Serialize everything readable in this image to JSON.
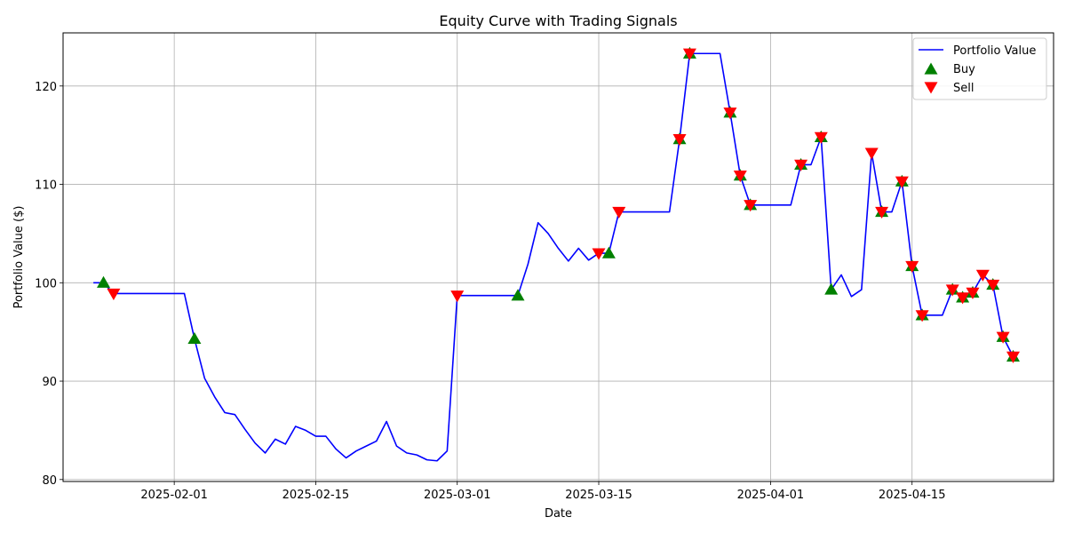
{
  "chart_data": {
    "type": "line",
    "title": "Equity Curve with Trading Signals",
    "xlabel": "Date",
    "ylabel": "Portfolio Value ($)",
    "xlim": [
      "2025-01-21",
      "2025-04-29"
    ],
    "ylim": [
      79.8,
      125.4
    ],
    "xticks": [
      "2025-02-01",
      "2025-02-15",
      "2025-03-01",
      "2025-03-15",
      "2025-04-01",
      "2025-04-15"
    ],
    "yticks": [
      80,
      90,
      100,
      110,
      120
    ],
    "grid": true,
    "legend": "top-right",
    "colors": {
      "line": "#0000ff",
      "buy": "#008000",
      "sell": "#ff0000"
    },
    "series": [
      {
        "name": "Portfolio Value",
        "kind": "line",
        "points": [
          [
            "2025-01-24",
            100.0
          ],
          [
            "2025-01-25",
            100.0
          ],
          [
            "2025-01-26",
            98.9
          ],
          [
            "2025-01-27",
            98.9
          ],
          [
            "2025-01-28",
            98.9
          ],
          [
            "2025-01-29",
            98.9
          ],
          [
            "2025-01-30",
            98.9
          ],
          [
            "2025-01-31",
            98.9
          ],
          [
            "2025-02-01",
            98.9
          ],
          [
            "2025-02-02",
            98.9
          ],
          [
            "2025-02-03",
            94.3
          ],
          [
            "2025-02-04",
            90.3
          ],
          [
            "2025-02-05",
            88.4
          ],
          [
            "2025-02-06",
            86.8
          ],
          [
            "2025-02-07",
            86.6
          ],
          [
            "2025-02-08",
            85.1
          ],
          [
            "2025-02-09",
            83.7
          ],
          [
            "2025-02-10",
            82.7
          ],
          [
            "2025-02-11",
            84.1
          ],
          [
            "2025-02-12",
            83.6
          ],
          [
            "2025-02-13",
            85.4
          ],
          [
            "2025-02-14",
            85.0
          ],
          [
            "2025-02-15",
            84.4
          ],
          [
            "2025-02-16",
            84.4
          ],
          [
            "2025-02-17",
            83.1
          ],
          [
            "2025-02-18",
            82.2
          ],
          [
            "2025-02-19",
            82.9
          ],
          [
            "2025-02-20",
            83.4
          ],
          [
            "2025-02-21",
            83.9
          ],
          [
            "2025-02-22",
            85.9
          ],
          [
            "2025-02-23",
            83.4
          ],
          [
            "2025-02-24",
            82.7
          ],
          [
            "2025-02-25",
            82.5
          ],
          [
            "2025-02-26",
            82.0
          ],
          [
            "2025-02-27",
            81.9
          ],
          [
            "2025-02-28",
            82.9
          ],
          [
            "2025-03-01",
            98.7
          ],
          [
            "2025-03-02",
            98.7
          ],
          [
            "2025-03-03",
            98.7
          ],
          [
            "2025-03-04",
            98.7
          ],
          [
            "2025-03-05",
            98.7
          ],
          [
            "2025-03-06",
            98.7
          ],
          [
            "2025-03-07",
            98.7
          ],
          [
            "2025-03-08",
            101.9
          ],
          [
            "2025-03-09",
            106.1
          ],
          [
            "2025-03-10",
            105.0
          ],
          [
            "2025-03-11",
            103.5
          ],
          [
            "2025-03-12",
            102.2
          ],
          [
            "2025-03-13",
            103.5
          ],
          [
            "2025-03-14",
            102.3
          ],
          [
            "2025-03-15",
            103.0
          ],
          [
            "2025-03-16",
            103.0
          ],
          [
            "2025-03-17",
            107.2
          ],
          [
            "2025-03-18",
            107.2
          ],
          [
            "2025-03-19",
            107.2
          ],
          [
            "2025-03-20",
            107.2
          ],
          [
            "2025-03-21",
            107.2
          ],
          [
            "2025-03-22",
            107.2
          ],
          [
            "2025-03-23",
            114.6
          ],
          [
            "2025-03-24",
            123.3
          ],
          [
            "2025-03-25",
            123.3
          ],
          [
            "2025-03-26",
            123.3
          ],
          [
            "2025-03-27",
            123.3
          ],
          [
            "2025-03-28",
            117.3
          ],
          [
            "2025-03-29",
            110.9
          ],
          [
            "2025-03-30",
            107.9
          ],
          [
            "2025-03-31",
            107.9
          ],
          [
            "2025-04-01",
            107.9
          ],
          [
            "2025-04-02",
            107.9
          ],
          [
            "2025-04-03",
            107.9
          ],
          [
            "2025-04-04",
            112.0
          ],
          [
            "2025-04-05",
            112.0
          ],
          [
            "2025-04-06",
            114.8
          ],
          [
            "2025-04-07",
            99.3
          ],
          [
            "2025-04-08",
            100.8
          ],
          [
            "2025-04-09",
            98.6
          ],
          [
            "2025-04-10",
            99.3
          ],
          [
            "2025-04-11",
            113.2
          ],
          [
            "2025-04-12",
            107.2
          ],
          [
            "2025-04-13",
            107.2
          ],
          [
            "2025-04-14",
            110.3
          ],
          [
            "2025-04-15",
            101.7
          ],
          [
            "2025-04-16",
            96.7
          ],
          [
            "2025-04-17",
            96.7
          ],
          [
            "2025-04-18",
            96.7
          ],
          [
            "2025-04-19",
            99.3
          ],
          [
            "2025-04-20",
            98.5
          ],
          [
            "2025-04-21",
            99.0
          ],
          [
            "2025-04-22",
            100.8
          ],
          [
            "2025-04-23",
            99.8
          ],
          [
            "2025-04-24",
            94.5
          ],
          [
            "2025-04-25",
            92.5
          ]
        ]
      },
      {
        "name": "Buy",
        "kind": "marker-up",
        "points": [
          [
            "2025-01-25",
            100.0
          ],
          [
            "2025-02-03",
            94.3
          ],
          [
            "2025-03-07",
            98.7
          ],
          [
            "2025-03-16",
            103.0
          ],
          [
            "2025-03-23",
            114.6
          ],
          [
            "2025-03-24",
            123.3
          ],
          [
            "2025-03-28",
            117.3
          ],
          [
            "2025-03-29",
            110.9
          ],
          [
            "2025-03-30",
            107.9
          ],
          [
            "2025-04-04",
            112.0
          ],
          [
            "2025-04-06",
            114.8
          ],
          [
            "2025-04-07",
            99.3
          ],
          [
            "2025-04-12",
            107.2
          ],
          [
            "2025-04-14",
            110.3
          ],
          [
            "2025-04-15",
            101.7
          ],
          [
            "2025-04-16",
            96.7
          ],
          [
            "2025-04-19",
            99.3
          ],
          [
            "2025-04-20",
            98.5
          ],
          [
            "2025-04-21",
            99.0
          ],
          [
            "2025-04-23",
            99.8
          ],
          [
            "2025-04-24",
            94.5
          ],
          [
            "2025-04-25",
            92.5
          ]
        ]
      },
      {
        "name": "Sell",
        "kind": "marker-down",
        "points": [
          [
            "2025-01-26",
            98.9
          ],
          [
            "2025-03-01",
            98.7
          ],
          [
            "2025-03-15",
            103.0
          ],
          [
            "2025-03-17",
            107.2
          ],
          [
            "2025-03-23",
            114.6
          ],
          [
            "2025-03-24",
            123.3
          ],
          [
            "2025-03-28",
            117.3
          ],
          [
            "2025-03-29",
            110.9
          ],
          [
            "2025-03-30",
            107.9
          ],
          [
            "2025-04-04",
            112.0
          ],
          [
            "2025-04-06",
            114.8
          ],
          [
            "2025-04-11",
            113.2
          ],
          [
            "2025-04-12",
            107.2
          ],
          [
            "2025-04-14",
            110.3
          ],
          [
            "2025-04-15",
            101.7
          ],
          [
            "2025-04-16",
            96.7
          ],
          [
            "2025-04-19",
            99.3
          ],
          [
            "2025-04-20",
            98.5
          ],
          [
            "2025-04-21",
            99.0
          ],
          [
            "2025-04-22",
            100.8
          ],
          [
            "2025-04-23",
            99.8
          ],
          [
            "2025-04-24",
            94.5
          ],
          [
            "2025-04-25",
            92.5
          ]
        ]
      }
    ]
  }
}
